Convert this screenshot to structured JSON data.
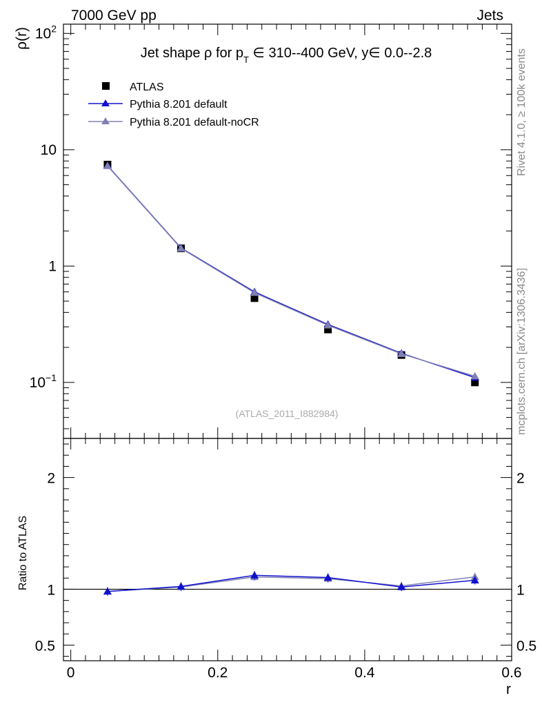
{
  "header": {
    "left": "7000 GeV pp",
    "right": "Jets"
  },
  "side_labels": {
    "rivet": "Rivet 4.1.0, ≥ 100k events",
    "mcplots": "mcplots.cern.ch [arXiv:1306.3436]"
  },
  "watermark": "(ATLAS_2011_I882984)",
  "chart_data": [
    {
      "type": "line",
      "panel": "main",
      "title_parts": {
        "prefix": "Jet shape ρ for p",
        "subscript": "T",
        "suffix": " ∈ 310--400 GeV, y∈ 0.0--2.8"
      },
      "ylabel": "ρ(r)",
      "yscale": "log",
      "ylim": [
        0.033,
        120
      ],
      "xlim": [
        -0.01,
        0.6
      ],
      "x": [
        0.05,
        0.15,
        0.25,
        0.35,
        0.45,
        0.55
      ],
      "yticks": [
        {
          "value": 0.1,
          "base": "10",
          "exp": "−1"
        },
        {
          "value": 1,
          "base": "1",
          "exp": ""
        },
        {
          "value": 10,
          "base": "10",
          "exp": ""
        },
        {
          "value": 100,
          "base": "10",
          "exp": "2"
        }
      ],
      "legend_position": "top-left",
      "series": [
        {
          "name": "ATLAS",
          "marker": "square",
          "color": "#000000",
          "line": false,
          "values": [
            7.45,
            1.42,
            0.53,
            0.285,
            0.172,
            0.1
          ]
        },
        {
          "name": "Pythia 8.201 default",
          "marker": "triangle",
          "color": "#1010cc",
          "line": true,
          "values": [
            7.3,
            1.43,
            0.6,
            0.315,
            0.178,
            0.11
          ]
        },
        {
          "name": "Pythia 8.201 default-noCR",
          "marker": "triangle",
          "color": "#8080b4",
          "line": true,
          "values": [
            7.25,
            1.42,
            0.59,
            0.31,
            0.176,
            0.113
          ]
        }
      ]
    },
    {
      "type": "line",
      "panel": "ratio",
      "ylabel": "Ratio to ATLAS",
      "xlabel": "r",
      "ylim": [
        0.36,
        2.35
      ],
      "xlim": [
        -0.01,
        0.6
      ],
      "x": [
        0.05,
        0.15,
        0.25,
        0.35,
        0.45,
        0.55
      ],
      "yticks": [
        {
          "value": 0.5,
          "label": "0.5"
        },
        {
          "value": 1,
          "label": "1"
        },
        {
          "value": 2,
          "label": "2"
        }
      ],
      "xticks": [
        {
          "value": 0,
          "label": "0"
        },
        {
          "value": 0.2,
          "label": "0.2"
        },
        {
          "value": 0.4,
          "label": "0.4"
        },
        {
          "value": 0.6,
          "label": "0.6"
        }
      ],
      "reference_line": 1,
      "series": [
        {
          "name": "Pythia 8.201 default",
          "marker": "triangle",
          "color": "#1010cc",
          "values": [
            0.98,
            1.025,
            1.125,
            1.105,
            1.02,
            1.08
          ]
        },
        {
          "name": "Pythia 8.201 default-noCR",
          "marker": "triangle",
          "color": "#8080b4",
          "values": [
            0.98,
            1.02,
            1.11,
            1.095,
            1.03,
            1.11
          ]
        }
      ]
    }
  ]
}
